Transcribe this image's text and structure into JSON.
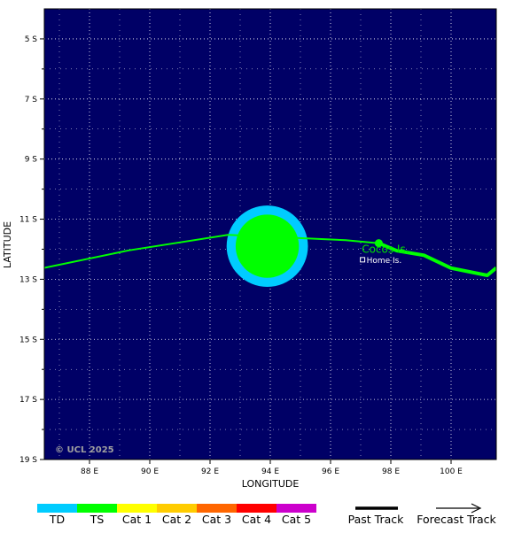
{
  "map": {
    "background_color": "#000066",
    "grid_color": "#ffffff",
    "lon_range": [
      86.5,
      101.5
    ],
    "lat_range": [
      -19,
      -4
    ],
    "lon_ticks": [
      {
        "value": 88,
        "label": "88 E"
      },
      {
        "value": 90,
        "label": "90 E"
      },
      {
        "value": 92,
        "label": "92 E"
      },
      {
        "value": 94,
        "label": "94 E"
      },
      {
        "value": 96,
        "label": "96 E"
      },
      {
        "value": 98,
        "label": "98 E"
      },
      {
        "value": 100,
        "label": "100 E"
      }
    ],
    "lat_ticks": [
      {
        "value": -5,
        "label": "5 S"
      },
      {
        "value": -7,
        "label": "7 S"
      },
      {
        "value": -9,
        "label": "9 S"
      },
      {
        "value": -11,
        "label": "11 S"
      },
      {
        "value": -13,
        "label": "13 S"
      },
      {
        "value": -15,
        "label": "15 S"
      },
      {
        "value": -17,
        "label": "17 S"
      },
      {
        "value": -19,
        "label": "19 S"
      }
    ],
    "xlabel": "LONGITUDE",
    "ylabel": "LATITUDE",
    "copyright": "© UCL 2025"
  },
  "places": [
    {
      "name": "Cocos Is.",
      "lon": 96.8,
      "lat": -12.0,
      "color": "#00e000"
    },
    {
      "name": "Home Is.",
      "lon": 96.9,
      "lat": -12.1,
      "color": "#ffffff"
    }
  ],
  "storm": {
    "center": {
      "lon": 93.9,
      "lat": -11.9
    },
    "td_radius_deg": 1.35,
    "ts_radius_deg": 1.05,
    "td_color": "#00ccff",
    "ts_color": "#00ff00"
  },
  "track": {
    "color": "#00ff00",
    "thin": [
      {
        "lon": 86.5,
        "lat": -12.62
      },
      {
        "lon": 89.3,
        "lat": -12.04
      },
      {
        "lon": 92.6,
        "lat": -11.52
      },
      {
        "lon": 96.5,
        "lat": -11.7
      },
      {
        "lon": 97.6,
        "lat": -11.8
      }
    ],
    "thick": [
      {
        "lon": 97.6,
        "lat": -11.8
      },
      {
        "lon": 98.2,
        "lat": -12.05
      },
      {
        "lon": 99.1,
        "lat": -12.2
      },
      {
        "lon": 100.0,
        "lat": -12.63
      },
      {
        "lon": 101.2,
        "lat": -12.87
      },
      {
        "lon": 101.5,
        "lat": -12.62
      }
    ],
    "current_position": {
      "lon": 97.6,
      "lat": -11.8
    }
  },
  "legend": {
    "categories": [
      {
        "label": "TD",
        "color": "#00ccff"
      },
      {
        "label": "TS",
        "color": "#00ff00"
      },
      {
        "label": "Cat 1",
        "color": "#ffff00"
      },
      {
        "label": "Cat 2",
        "color": "#ffcc00"
      },
      {
        "label": "Cat 3",
        "color": "#ff6600"
      },
      {
        "label": "Cat 4",
        "color": "#ff0000"
      },
      {
        "label": "Cat 5",
        "color": "#cc00cc"
      }
    ],
    "past_track_label": "Past Track",
    "forecast_track_label": "Forecast Track"
  }
}
